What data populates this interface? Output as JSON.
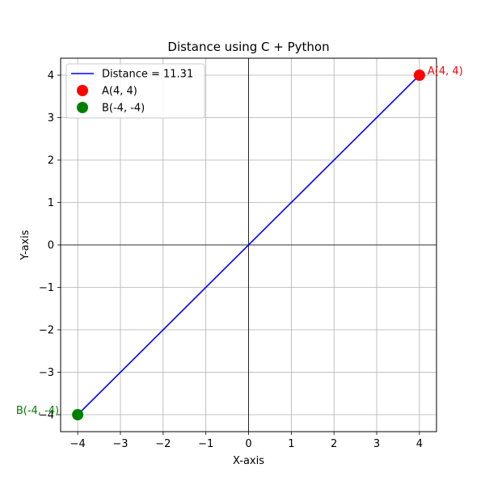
{
  "chart_data": {
    "type": "scatter",
    "title": "Distance using C + Python",
    "xlabel": "X-axis",
    "ylabel": "Y-axis",
    "xlim": [
      -4.4,
      4.4
    ],
    "ylim": [
      -4.4,
      4.4
    ],
    "xticks": [
      -4,
      -3,
      -2,
      -1,
      0,
      1,
      2,
      3,
      4
    ],
    "yticks": [
      -4,
      -3,
      -2,
      -1,
      0,
      1,
      2,
      3,
      4
    ],
    "xtick_labels": [
      "−4",
      "−3",
      "−2",
      "−1",
      "0",
      "1",
      "2",
      "3",
      "4"
    ],
    "ytick_labels": [
      "−4",
      "−3",
      "−2",
      "−1",
      "0",
      "1",
      "2",
      "3",
      "4"
    ],
    "grid": true,
    "axis_lines_at_zero": true,
    "legend_placement": "upper-left",
    "series": [
      {
        "name": "Distance = 11.31",
        "kind": "line",
        "color": "#0000ff",
        "x": [
          4,
          -4
        ],
        "y": [
          4,
          -4
        ]
      },
      {
        "name": "A(4, 4)",
        "kind": "scatter",
        "color": "#ff0000",
        "x": [
          4
        ],
        "y": [
          4
        ]
      },
      {
        "name": "B(-4, -4)",
        "kind": "scatter",
        "color": "#008000",
        "x": [
          -4
        ],
        "y": [
          -4
        ]
      }
    ],
    "annotations": [
      {
        "text": "A(4, 4)",
        "x": 4,
        "y": 4,
        "color": "#ff0000",
        "side": "right"
      },
      {
        "text": "B(-4, -4)",
        "x": -4,
        "y": -4,
        "color": "#008000",
        "side": "left"
      }
    ]
  }
}
